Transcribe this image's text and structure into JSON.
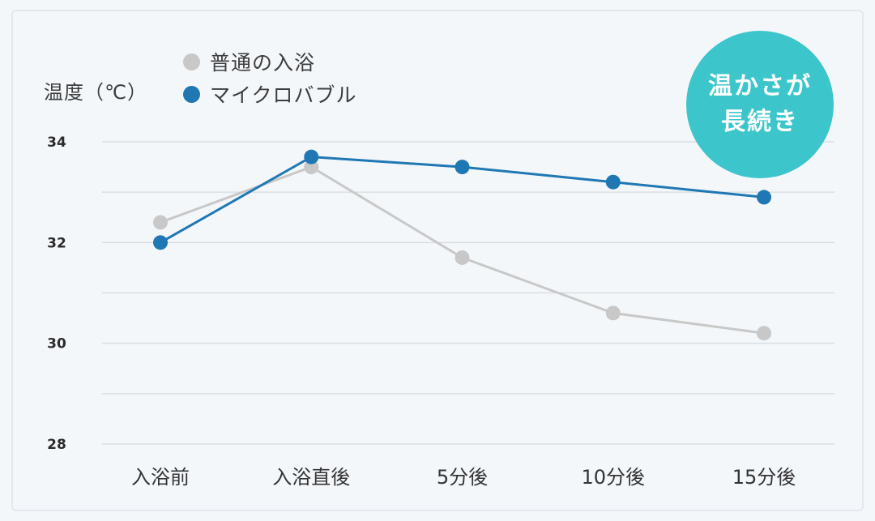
{
  "chart_data": {
    "type": "line",
    "ylabel": "温度（℃）",
    "categories": [
      "入浴前",
      "入浴直後",
      "5分後",
      "10分後",
      "15分後"
    ],
    "ylim": [
      28,
      34
    ],
    "yticks": [
      28,
      30,
      32,
      34
    ],
    "grid": true,
    "legend_position": "top-left",
    "series": [
      {
        "name": "普通の入浴",
        "color": "#c8c8c8",
        "values": [
          32.4,
          33.5,
          31.7,
          30.6,
          30.2
        ]
      },
      {
        "name": "マイクロバブル",
        "color": "#1f78b4",
        "values": [
          32.0,
          33.7,
          33.5,
          33.2,
          32.9
        ]
      }
    ],
    "annotation": {
      "lines": [
        "温かさが",
        "長続き"
      ],
      "color": "#3cc6cc"
    }
  }
}
